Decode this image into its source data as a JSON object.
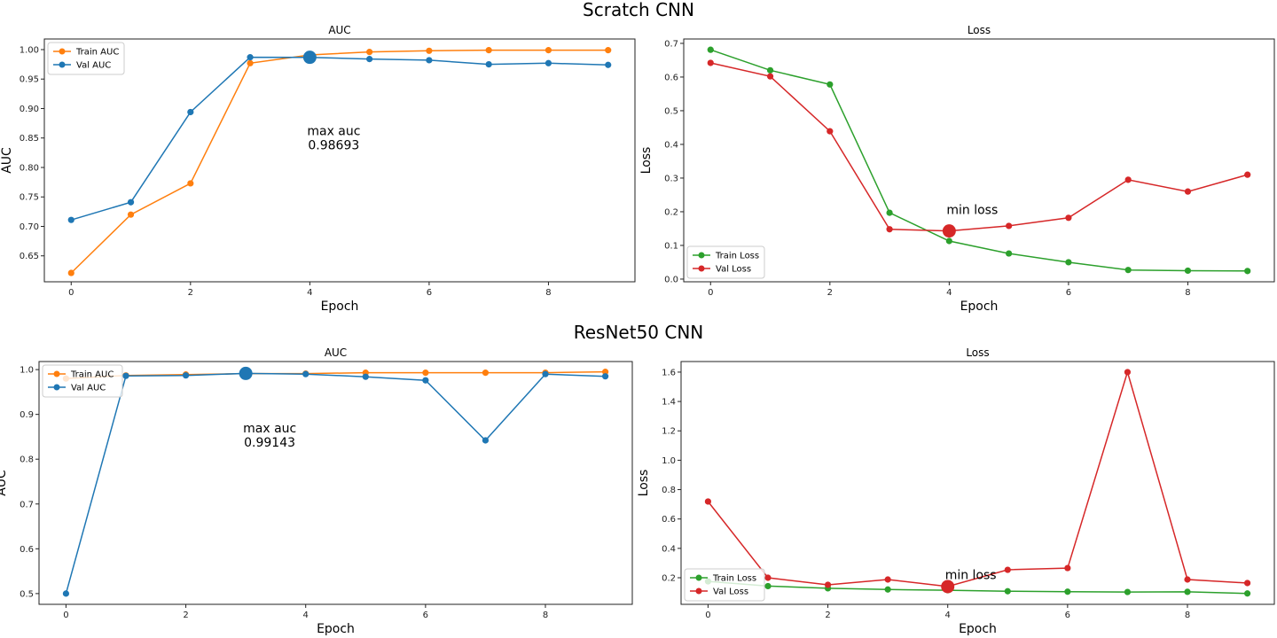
{
  "chart_data": [
    {
      "type": "line",
      "group_title": "Scratch CNN",
      "title": "AUC",
      "xlabel": "Epoch",
      "ylabel": "AUC",
      "x": [
        0,
        1,
        2,
        3,
        4,
        5,
        6,
        7,
        8,
        9
      ],
      "xlim": [
        -0.45,
        9.45
      ],
      "ylim": [
        0.606,
        1.018
      ],
      "xticks": [
        0,
        2,
        4,
        6,
        8
      ],
      "yticks": [
        0.65,
        0.7,
        0.75,
        0.8,
        0.85,
        0.9,
        0.95,
        1.0
      ],
      "ytick_labels": [
        "0.65",
        "0.70",
        "0.75",
        "0.80",
        "0.85",
        "0.90",
        "0.95",
        "1.00"
      ],
      "grid": false,
      "legend": "upper-left",
      "series": [
        {
          "name": "Train AUC",
          "color": "#ff7f0e",
          "values": [
            0.621,
            0.72,
            0.773,
            0.977,
            0.991,
            0.996,
            0.998,
            0.999,
            0.999,
            0.999
          ]
        },
        {
          "name": "Val AUC",
          "color": "#1f77b4",
          "values": [
            0.711,
            0.741,
            0.894,
            0.987,
            0.98693,
            0.984,
            0.982,
            0.975,
            0.977,
            0.974
          ]
        }
      ],
      "highlight": {
        "series": "Val AUC",
        "x": 4,
        "y": 0.98693,
        "color": "#1f77b4"
      },
      "annotation": {
        "line1": "max auc",
        "line2": "0.98693",
        "x": 4,
        "y": 0.855
      }
    },
    {
      "type": "line",
      "group_title": "Scratch CNN",
      "title": "Loss",
      "xlabel": "Epoch",
      "ylabel": "Loss",
      "x": [
        0,
        1,
        2,
        3,
        4,
        5,
        6,
        7,
        8,
        9
      ],
      "xlim": [
        -0.45,
        9.45
      ],
      "ylim": [
        -0.008,
        0.713
      ],
      "xticks": [
        0,
        2,
        4,
        6,
        8
      ],
      "yticks": [
        0.0,
        0.1,
        0.2,
        0.3,
        0.4,
        0.5,
        0.6,
        0.7
      ],
      "ytick_labels": [
        "0.0",
        "0.1",
        "0.2",
        "0.3",
        "0.4",
        "0.5",
        "0.6",
        "0.7"
      ],
      "grid": false,
      "legend": "lower-left",
      "series": [
        {
          "name": "Train Loss",
          "color": "#2ca02c",
          "values": [
            0.681,
            0.62,
            0.578,
            0.197,
            0.113,
            0.076,
            0.05,
            0.027,
            0.025,
            0.024
          ]
        },
        {
          "name": "Val Loss",
          "color": "#d62728",
          "values": [
            0.642,
            0.602,
            0.439,
            0.148,
            0.143,
            0.158,
            0.182,
            0.295,
            0.26,
            0.31
          ]
        }
      ],
      "highlight": {
        "series": "Val Loss",
        "x": 4,
        "y": 0.143,
        "color": "#d62728"
      },
      "annotation": {
        "line1": "min loss",
        "line2": "",
        "x": 4,
        "y": 0.193
      }
    },
    {
      "type": "line",
      "group_title": "ResNet50 CNN",
      "title": "AUC",
      "xlabel": "Epoch",
      "ylabel": "AUC",
      "x": [
        0,
        1,
        2,
        3,
        4,
        5,
        6,
        7,
        8,
        9
      ],
      "xlim": [
        -0.45,
        9.45
      ],
      "ylim": [
        0.476,
        1.018
      ],
      "xticks": [
        0,
        2,
        4,
        6,
        8
      ],
      "yticks": [
        0.5,
        0.6,
        0.7,
        0.8,
        0.9,
        1.0
      ],
      "ytick_labels": [
        "0.5",
        "0.6",
        "0.7",
        "0.8",
        "0.9",
        "1.0"
      ],
      "grid": false,
      "legend": "upper-left",
      "series": [
        {
          "name": "Train AUC",
          "color": "#ff7f0e",
          "values": [
            0.98,
            0.987,
            0.989,
            0.991,
            0.991,
            0.993,
            0.993,
            0.993,
            0.993,
            0.995
          ]
        },
        {
          "name": "Val AUC",
          "color": "#1f77b4",
          "values": [
            0.5,
            0.986,
            0.987,
            0.99143,
            0.99,
            0.984,
            0.976,
            0.842,
            0.99,
            0.985
          ]
        }
      ],
      "highlight": {
        "series": "Val AUC",
        "x": 3,
        "y": 0.99143,
        "color": "#1f77b4"
      },
      "annotation": {
        "line1": "max auc",
        "line2": "0.99143",
        "x": 3,
        "y": 0.86
      }
    },
    {
      "type": "line",
      "group_title": "ResNet50 CNN",
      "title": "Loss",
      "xlabel": "Epoch",
      "ylabel": "Loss",
      "x": [
        0,
        1,
        2,
        3,
        4,
        5,
        6,
        7,
        8,
        9
      ],
      "xlim": [
        -0.45,
        9.45
      ],
      "ylim": [
        0.019,
        1.672
      ],
      "xticks": [
        0,
        2,
        4,
        6,
        8
      ],
      "yticks": [
        0.2,
        0.4,
        0.6,
        0.8,
        1.0,
        1.2,
        1.4,
        1.6
      ],
      "ytick_labels": [
        "0.2",
        "0.4",
        "0.6",
        "0.8",
        "1.0",
        "1.2",
        "1.4",
        "1.6"
      ],
      "grid": false,
      "legend": "lower-left",
      "series": [
        {
          "name": "Train Loss",
          "color": "#2ca02c",
          "values": [
            0.175,
            0.143,
            0.128,
            0.12,
            0.115,
            0.108,
            0.105,
            0.103,
            0.104,
            0.093
          ]
        },
        {
          "name": "Val Loss",
          "color": "#d62728",
          "values": [
            0.719,
            0.2,
            0.152,
            0.188,
            0.14,
            0.254,
            0.266,
            1.6,
            0.188,
            0.164
          ]
        }
      ],
      "highlight": {
        "series": "Val Loss",
        "x": 4,
        "y": 0.14,
        "color": "#d62728"
      },
      "annotation": {
        "line1": "min loss",
        "line2": "",
        "x": 4,
        "y": 0.19
      }
    }
  ],
  "figure": {
    "group_titles": [
      "Scratch CNN",
      "ResNet50 CNN"
    ]
  }
}
